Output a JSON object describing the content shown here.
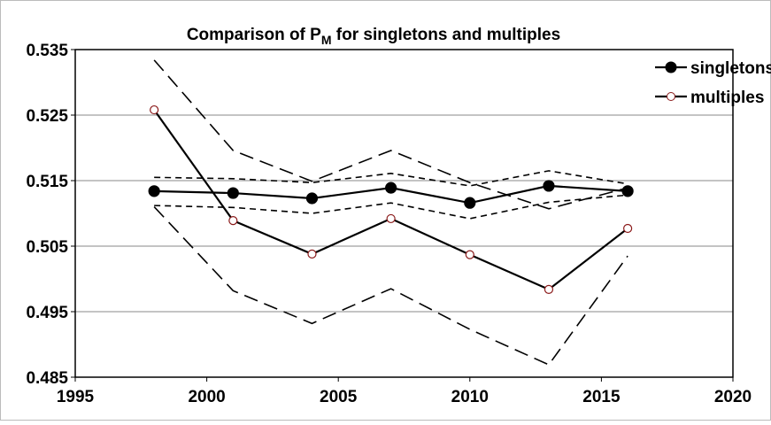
{
  "chart_data": {
    "type": "line",
    "title": [
      "Comparison of P",
      "M",
      " for singletons and multiples"
    ],
    "x": [
      1998,
      2001,
      2004,
      2007,
      2010,
      2013,
      2016
    ],
    "series": [
      {
        "values": [
          0.5334,
          0.5196,
          0.5149,
          0.5196,
          0.5147,
          0.5107,
          0.5139
        ],
        "color": "#000000",
        "dash": "long",
        "marker": "none"
      },
      {
        "values": [
          0.511,
          0.4982,
          0.4932,
          0.4985,
          0.4923,
          0.4869,
          0.5035
        ],
        "color": "#000000",
        "dash": "long",
        "marker": "none"
      },
      {
        "values": [
          0.5155,
          0.5153,
          0.5147,
          0.5161,
          0.5142,
          0.5165,
          0.5145
        ],
        "color": "#000000",
        "dash": "short",
        "marker": "none"
      },
      {
        "values": [
          0.5112,
          0.5109,
          0.51,
          0.5116,
          0.5092,
          0.5117,
          0.5128
        ],
        "color": "#000000",
        "dash": "short",
        "marker": "none"
      },
      {
        "name": "singletons",
        "values": [
          0.5134,
          0.5131,
          0.5123,
          0.5139,
          0.5116,
          0.5142,
          0.5134
        ],
        "color": "#000000",
        "dash": "solid",
        "marker": "filled"
      },
      {
        "name": "multiples",
        "values": [
          0.5258,
          0.5089,
          0.5038,
          0.5092,
          0.5037,
          0.4984,
          0.5077
        ],
        "color": "#000000",
        "dash": "solid",
        "marker": "open"
      }
    ],
    "marker_edge": "#8b1a1a",
    "xlim": [
      1995,
      2020
    ],
    "xticks": [
      1995,
      2000,
      2005,
      2010,
      2015,
      2020
    ],
    "ylim": [
      0.485,
      0.535
    ],
    "yticks": [
      0.485,
      0.495,
      0.505,
      0.515,
      0.525,
      0.535
    ],
    "grid": true,
    "legend": "upper right"
  }
}
